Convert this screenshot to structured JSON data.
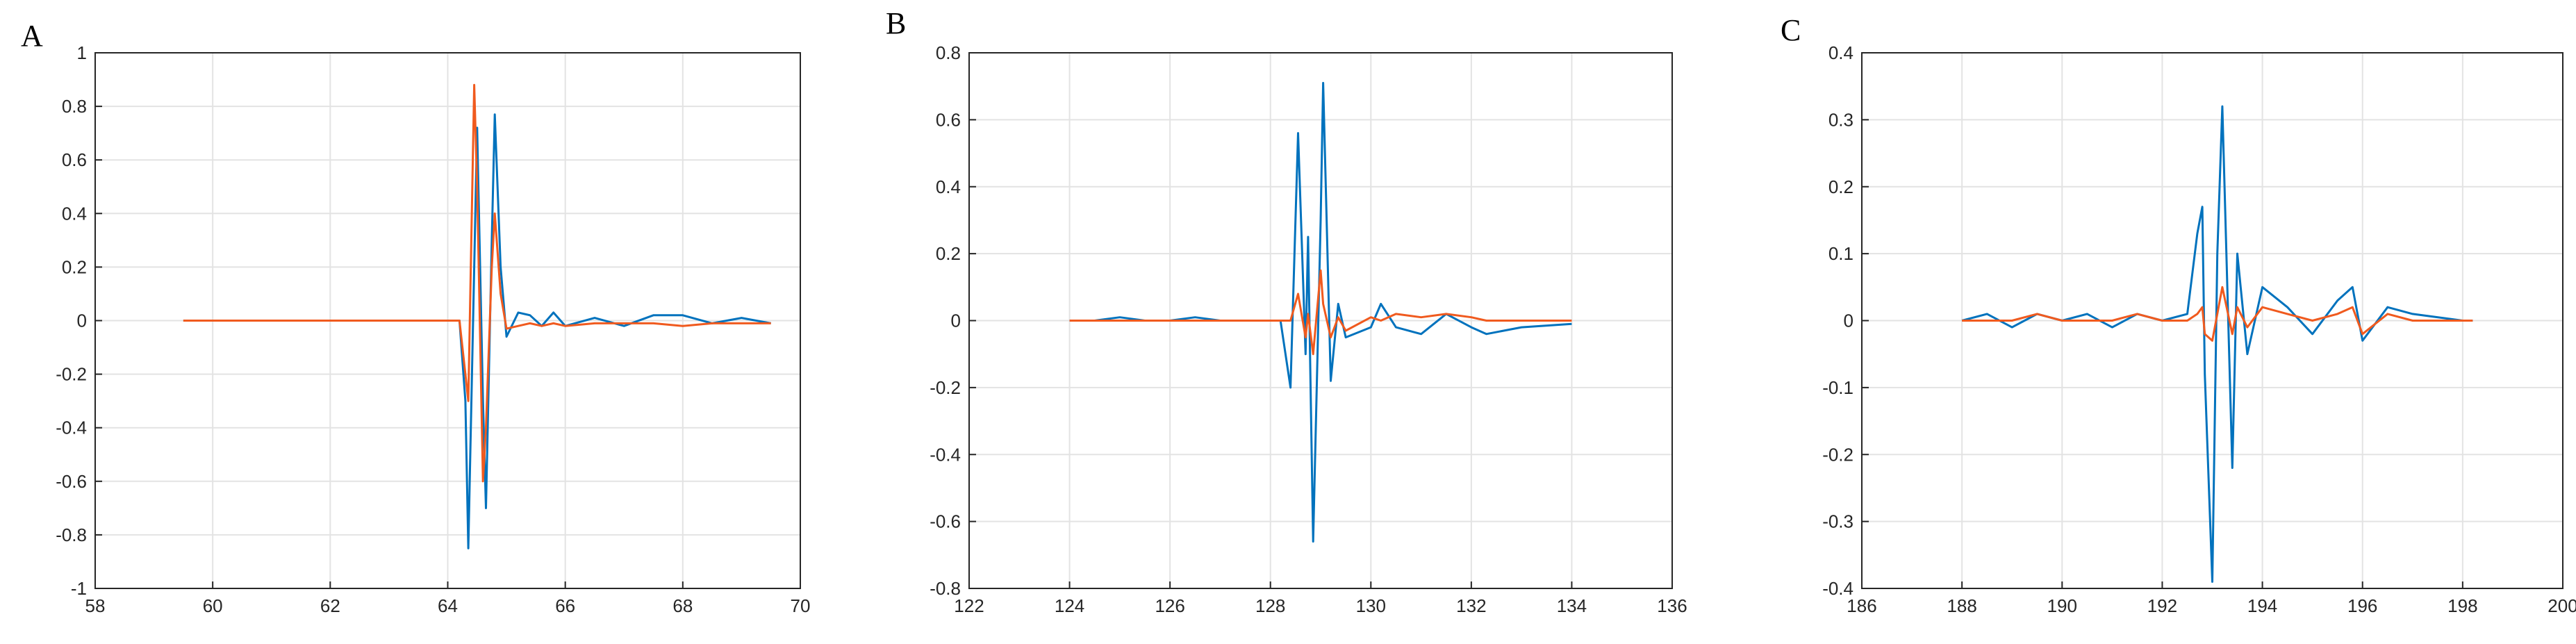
{
  "chart_data": [
    {
      "type": "line",
      "title": "A",
      "x": [
        59.5,
        60,
        60.5,
        61,
        61.5,
        62,
        62.5,
        63,
        63.5,
        64,
        64.2,
        64.3,
        64.35,
        64.45,
        64.5,
        64.6,
        64.65,
        64.75,
        64.8,
        64.9,
        65,
        65.2,
        65.4,
        65.6,
        65.8,
        66,
        66.5,
        67,
        67.5,
        68,
        68.5,
        69,
        69.5
      ],
      "series": [
        {
          "color": "#0072bd",
          "values": [
            0,
            0,
            0,
            0,
            0,
            0,
            0,
            0,
            0,
            0,
            0,
            -0.3,
            -0.85,
            0.2,
            0.72,
            -0.3,
            -0.7,
            0.3,
            0.77,
            0.2,
            -0.06,
            0.03,
            0.02,
            -0.02,
            0.03,
            -0.02,
            0.01,
            -0.02,
            0.02,
            0.02,
            -0.01,
            0.01,
            -0.01
          ]
        },
        {
          "color": "#f05a1e",
          "values": [
            0,
            0,
            0,
            0,
            0,
            0,
            0,
            0,
            0,
            0,
            0,
            -0.2,
            -0.3,
            0.88,
            0.5,
            -0.6,
            -0.4,
            0.2,
            0.4,
            0.1,
            -0.03,
            -0.02,
            -0.01,
            -0.02,
            -0.01,
            -0.02,
            -0.01,
            -0.01,
            -0.01,
            -0.02,
            -0.01,
            -0.01,
            -0.01
          ]
        }
      ],
      "xlim": [
        58,
        70
      ],
      "xticks": [
        58,
        60,
        62,
        64,
        66,
        68,
        70
      ],
      "ylim": [
        -1,
        1
      ],
      "yticks": [
        -1,
        -0.8,
        -0.6,
        -0.4,
        -0.2,
        0,
        0.2,
        0.4,
        0.6,
        0.8,
        1
      ],
      "grid": true
    },
    {
      "type": "line",
      "title": "B",
      "x": [
        124,
        124.5,
        125,
        125.5,
        126,
        126.5,
        127,
        127.5,
        128,
        128.2,
        128.4,
        128.55,
        128.7,
        128.75,
        128.85,
        129,
        129.05,
        129.2,
        129.35,
        129.5,
        130,
        130.2,
        130.5,
        131,
        131.5,
        132,
        132.3,
        133,
        134
      ],
      "series": [
        {
          "color": "#0072bd",
          "values": [
            0,
            0,
            0.01,
            0,
            0,
            0.01,
            0,
            0,
            0,
            0,
            -0.2,
            0.56,
            -0.1,
            0.25,
            -0.66,
            0.3,
            0.71,
            -0.18,
            0.05,
            -0.05,
            -0.02,
            0.05,
            -0.02,
            -0.04,
            0.02,
            -0.02,
            -0.04,
            -0.02,
            -0.01
          ]
        },
        {
          "color": "#f05a1e",
          "values": [
            0,
            0,
            0,
            0,
            0,
            0,
            0,
            0,
            0,
            0,
            0,
            0.08,
            -0.05,
            0.02,
            -0.1,
            0.15,
            0.05,
            -0.05,
            0.01,
            -0.03,
            0.01,
            0,
            0.02,
            0.01,
            0.02,
            0.01,
            0,
            0,
            0
          ]
        }
      ],
      "xlim": [
        122,
        136
      ],
      "xticks": [
        122,
        124,
        126,
        128,
        130,
        132,
        134,
        136
      ],
      "ylim": [
        -0.8,
        0.8
      ],
      "yticks": [
        -0.8,
        -0.6,
        -0.4,
        -0.2,
        0,
        0.2,
        0.4,
        0.6,
        0.8
      ],
      "grid": true
    },
    {
      "type": "line",
      "title": "C",
      "x": [
        188,
        188.5,
        189,
        189.5,
        190,
        190.5,
        191,
        191.5,
        192,
        192.5,
        192.7,
        192.8,
        192.85,
        193,
        193.1,
        193.2,
        193.4,
        193.5,
        193.7,
        194,
        194.5,
        195,
        195.5,
        195.8,
        196,
        196.5,
        197,
        198,
        198.2
      ],
      "series": [
        {
          "color": "#0072bd",
          "values": [
            0,
            0.01,
            -0.01,
            0.01,
            0,
            0.01,
            -0.01,
            0.01,
            0,
            0.01,
            0.13,
            0.17,
            -0.08,
            -0.39,
            0.1,
            0.32,
            -0.22,
            0.1,
            -0.05,
            0.05,
            0.02,
            -0.02,
            0.03,
            0.05,
            -0.03,
            0.02,
            0.01,
            0,
            0
          ]
        },
        {
          "color": "#f05a1e",
          "values": [
            0,
            0,
            0,
            0.01,
            0,
            0,
            0,
            0.01,
            0,
            0,
            0.01,
            0.02,
            -0.02,
            -0.03,
            0.01,
            0.05,
            -0.02,
            0.02,
            -0.01,
            0.02,
            0.01,
            0,
            0.01,
            0.02,
            -0.02,
            0.01,
            0,
            0,
            0
          ]
        }
      ],
      "xlim": [
        186,
        200
      ],
      "xticks": [
        186,
        188,
        190,
        192,
        194,
        196,
        198,
        200
      ],
      "ylim": [
        -0.4,
        0.4
      ],
      "yticks": [
        -0.4,
        -0.3,
        -0.2,
        -0.1,
        0,
        0.1,
        0.2,
        0.3,
        0.4
      ],
      "grid": true
    }
  ]
}
